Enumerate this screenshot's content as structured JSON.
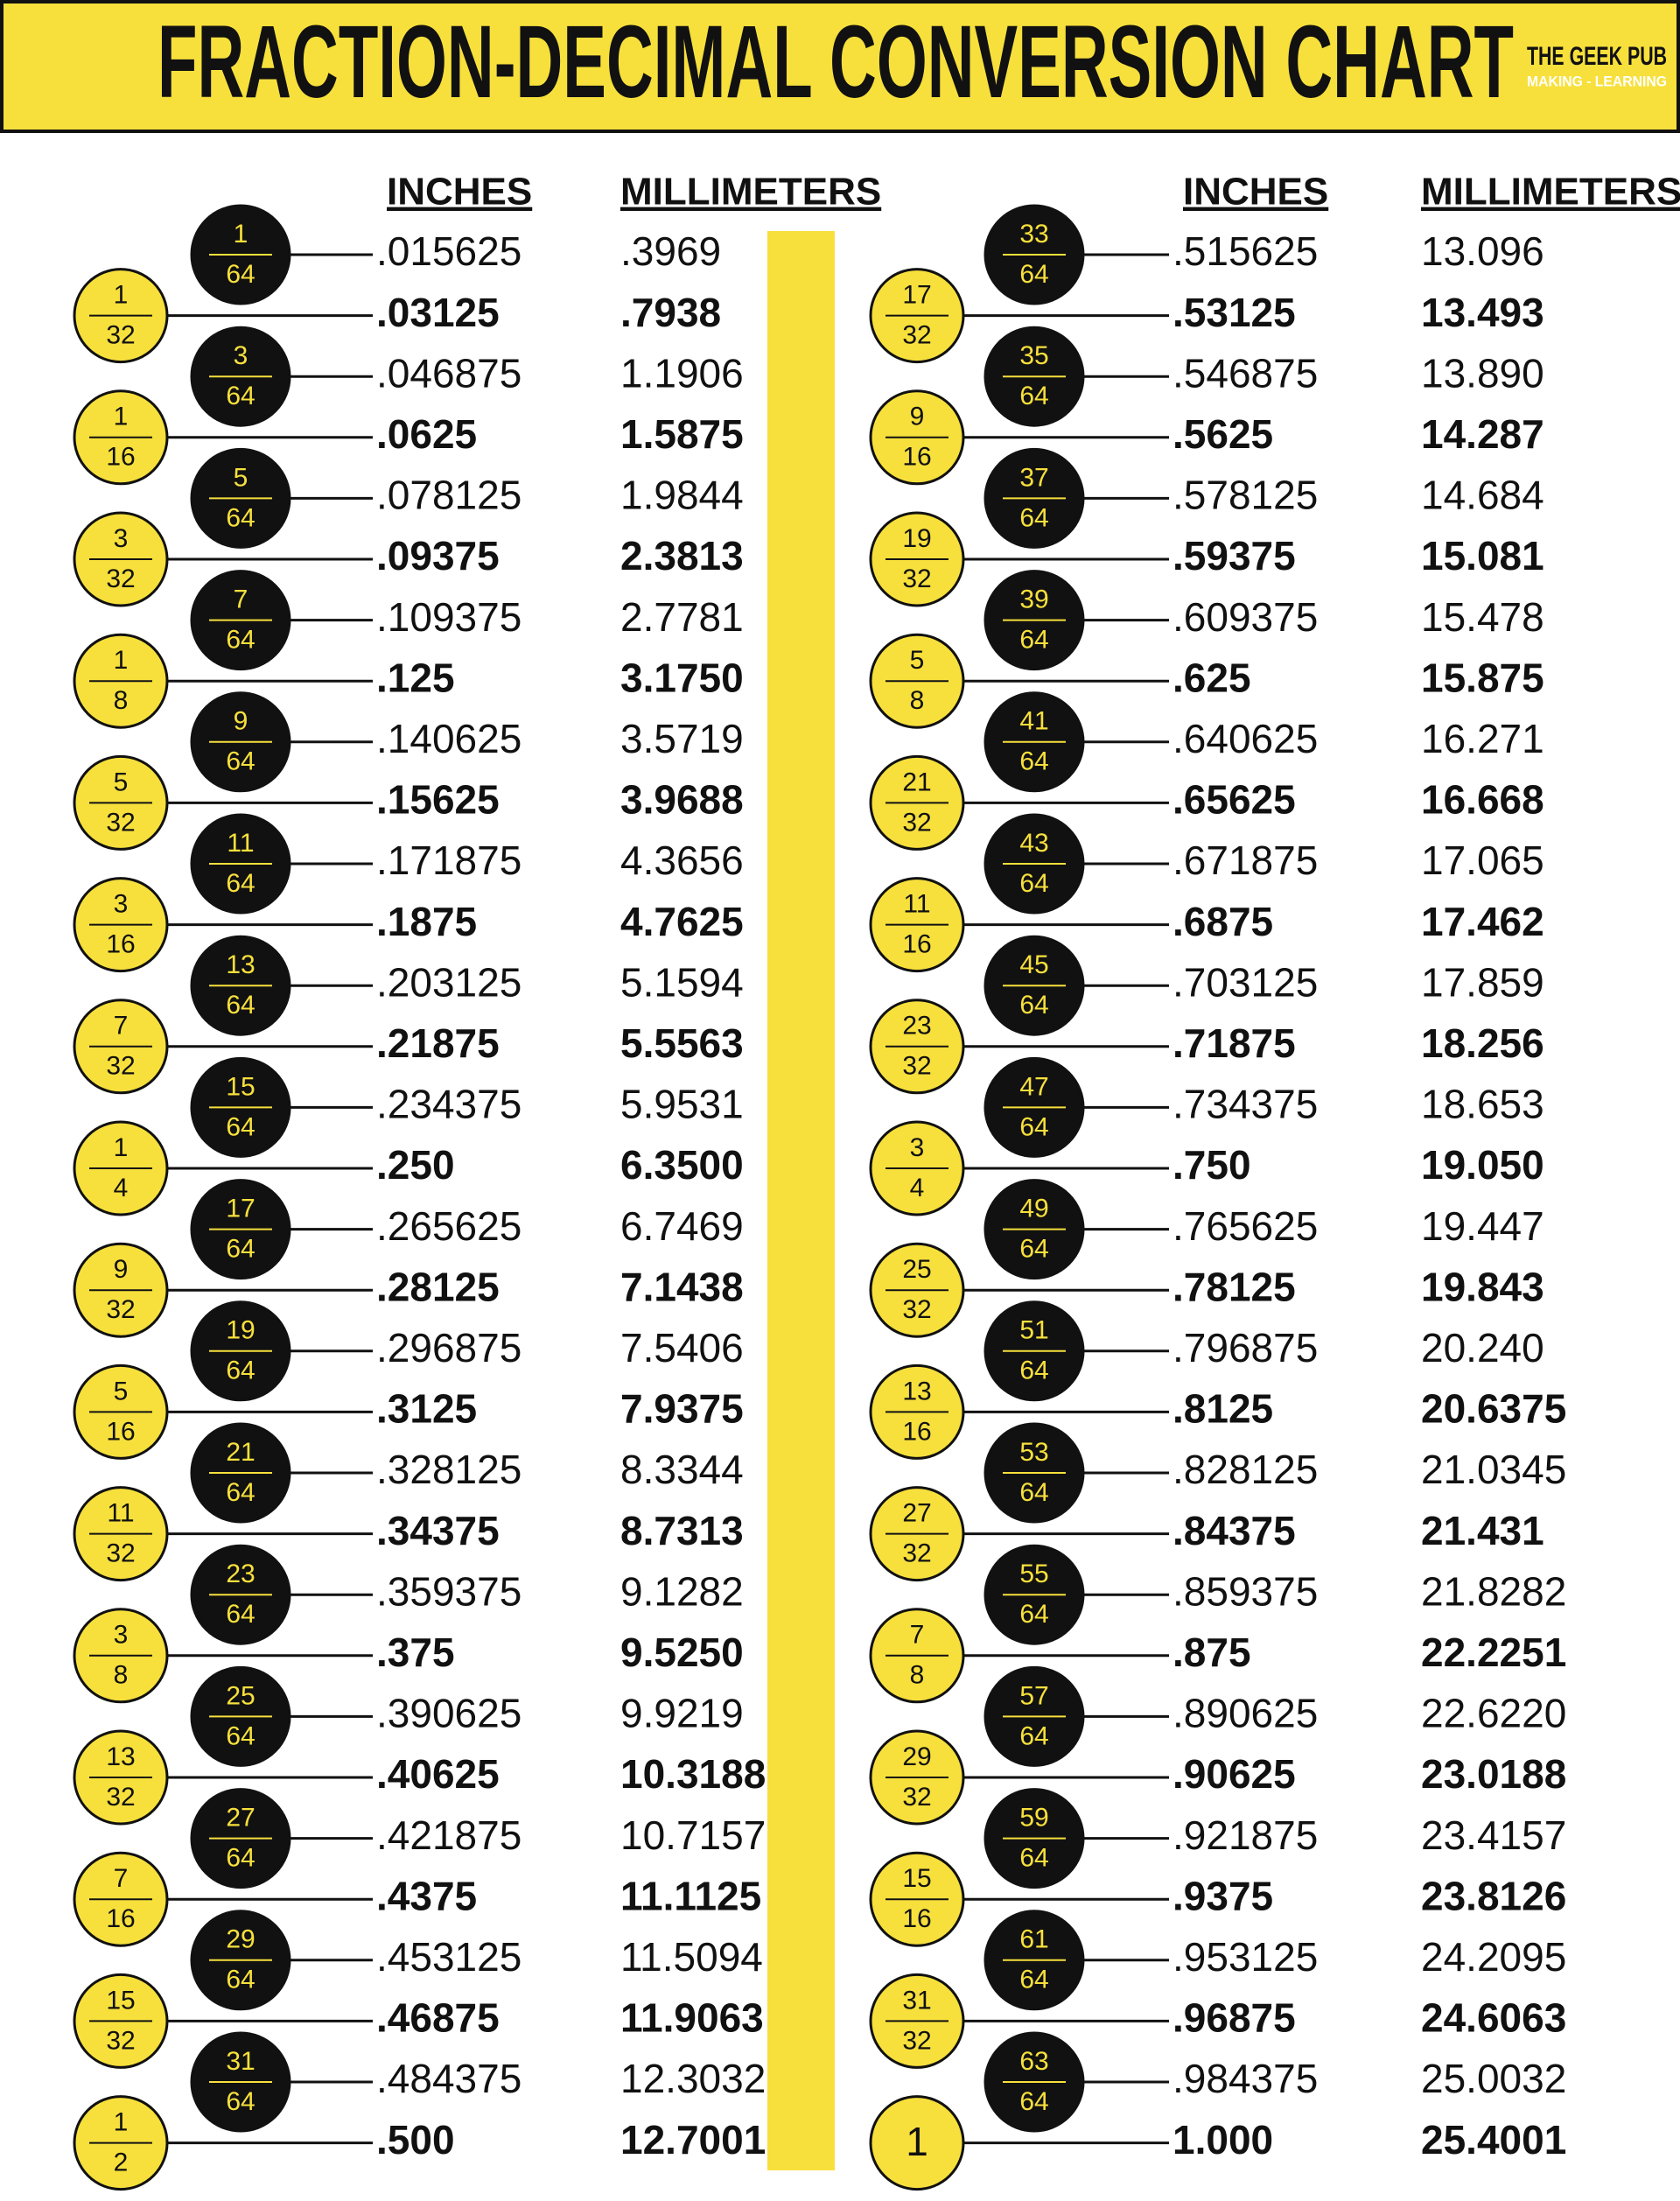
{
  "header": {
    "title": "FRACTION-DECIMAL CONVERSION CHART",
    "brand": "THE GEEK PUB",
    "tagline": "MAKING - LEARNING"
  },
  "columns": [
    {
      "inches_header": "INCHES",
      "mm_header": "MILLIMETERS",
      "rows": [
        {
          "num": "1",
          "den": "64",
          "inches": ".015625",
          "mm": ".3969"
        },
        {
          "num": "1",
          "den": "32",
          "inches": ".03125",
          "mm": ".7938"
        },
        {
          "num": "3",
          "den": "64",
          "inches": ".046875",
          "mm": "1.1906"
        },
        {
          "num": "1",
          "den": "16",
          "inches": ".0625",
          "mm": "1.5875"
        },
        {
          "num": "5",
          "den": "64",
          "inches": ".078125",
          "mm": "1.9844"
        },
        {
          "num": "3",
          "den": "32",
          "inches": ".09375",
          "mm": "2.3813"
        },
        {
          "num": "7",
          "den": "64",
          "inches": ".109375",
          "mm": "2.7781"
        },
        {
          "num": "1",
          "den": "8",
          "inches": ".125",
          "mm": "3.1750"
        },
        {
          "num": "9",
          "den": "64",
          "inches": ".140625",
          "mm": "3.5719"
        },
        {
          "num": "5",
          "den": "32",
          "inches": ".15625",
          "mm": "3.9688"
        },
        {
          "num": "11",
          "den": "64",
          "inches": ".171875",
          "mm": "4.3656"
        },
        {
          "num": "3",
          "den": "16",
          "inches": ".1875",
          "mm": "4.7625"
        },
        {
          "num": "13",
          "den": "64",
          "inches": ".203125",
          "mm": "5.1594"
        },
        {
          "num": "7",
          "den": "32",
          "inches": ".21875",
          "mm": "5.5563"
        },
        {
          "num": "15",
          "den": "64",
          "inches": ".234375",
          "mm": "5.9531"
        },
        {
          "num": "1",
          "den": "4",
          "inches": ".250",
          "mm": "6.3500"
        },
        {
          "num": "17",
          "den": "64",
          "inches": ".265625",
          "mm": "6.7469"
        },
        {
          "num": "9",
          "den": "32",
          "inches": ".28125",
          "mm": "7.1438"
        },
        {
          "num": "19",
          "den": "64",
          "inches": ".296875",
          "mm": "7.5406"
        },
        {
          "num": "5",
          "den": "16",
          "inches": ".3125",
          "mm": "7.9375"
        },
        {
          "num": "21",
          "den": "64",
          "inches": ".328125",
          "mm": "8.3344"
        },
        {
          "num": "11",
          "den": "32",
          "inches": ".34375",
          "mm": "8.7313"
        },
        {
          "num": "23",
          "den": "64",
          "inches": ".359375",
          "mm": "9.1282"
        },
        {
          "num": "3",
          "den": "8",
          "inches": ".375",
          "mm": "9.5250"
        },
        {
          "num": "25",
          "den": "64",
          "inches": ".390625",
          "mm": "9.9219"
        },
        {
          "num": "13",
          "den": "32",
          "inches": ".40625",
          "mm": "10.3188"
        },
        {
          "num": "27",
          "den": "64",
          "inches": ".421875",
          "mm": "10.7157"
        },
        {
          "num": "7",
          "den": "16",
          "inches": ".4375",
          "mm": "11.1125"
        },
        {
          "num": "29",
          "den": "64",
          "inches": ".453125",
          "mm": "11.5094"
        },
        {
          "num": "15",
          "den": "32",
          "inches": ".46875",
          "mm": "11.9063"
        },
        {
          "num": "31",
          "den": "64",
          "inches": ".484375",
          "mm": "12.3032"
        },
        {
          "num": "1",
          "den": "2",
          "inches": ".500",
          "mm": "12.7001"
        }
      ]
    },
    {
      "inches_header": "INCHES",
      "mm_header": "MILLIMETERS",
      "rows": [
        {
          "num": "33",
          "den": "64",
          "inches": ".515625",
          "mm": "13.096"
        },
        {
          "num": "17",
          "den": "32",
          "inches": ".53125",
          "mm": "13.493"
        },
        {
          "num": "35",
          "den": "64",
          "inches": ".546875",
          "mm": "13.890"
        },
        {
          "num": "9",
          "den": "16",
          "inches": ".5625",
          "mm": "14.287"
        },
        {
          "num": "37",
          "den": "64",
          "inches": ".578125",
          "mm": "14.684"
        },
        {
          "num": "19",
          "den": "32",
          "inches": ".59375",
          "mm": "15.081"
        },
        {
          "num": "39",
          "den": "64",
          "inches": ".609375",
          "mm": "15.478"
        },
        {
          "num": "5",
          "den": "8",
          "inches": ".625",
          "mm": "15.875"
        },
        {
          "num": "41",
          "den": "64",
          "inches": ".640625",
          "mm": "16.271"
        },
        {
          "num": "21",
          "den": "32",
          "inches": ".65625",
          "mm": "16.668"
        },
        {
          "num": "43",
          "den": "64",
          "inches": ".671875",
          "mm": "17.065"
        },
        {
          "num": "11",
          "den": "16",
          "inches": ".6875",
          "mm": "17.462"
        },
        {
          "num": "45",
          "den": "64",
          "inches": ".703125",
          "mm": "17.859"
        },
        {
          "num": "23",
          "den": "32",
          "inches": ".71875",
          "mm": "18.256"
        },
        {
          "num": "47",
          "den": "64",
          "inches": ".734375",
          "mm": "18.653"
        },
        {
          "num": "3",
          "den": "4",
          "inches": ".750",
          "mm": "19.050"
        },
        {
          "num": "49",
          "den": "64",
          "inches": ".765625",
          "mm": "19.447"
        },
        {
          "num": "25",
          "den": "32",
          "inches": ".78125",
          "mm": "19.843"
        },
        {
          "num": "51",
          "den": "64",
          "inches": ".796875",
          "mm": "20.240"
        },
        {
          "num": "13",
          "den": "16",
          "inches": ".8125",
          "mm": "20.6375"
        },
        {
          "num": "53",
          "den": "64",
          "inches": ".828125",
          "mm": "21.0345"
        },
        {
          "num": "27",
          "den": "32",
          "inches": ".84375",
          "mm": "21.431"
        },
        {
          "num": "55",
          "den": "64",
          "inches": ".859375",
          "mm": "21.8282"
        },
        {
          "num": "7",
          "den": "8",
          "inches": ".875",
          "mm": "22.2251"
        },
        {
          "num": "57",
          "den": "64",
          "inches": ".890625",
          "mm": "22.6220"
        },
        {
          "num": "29",
          "den": "32",
          "inches": ".90625",
          "mm": "23.0188"
        },
        {
          "num": "59",
          "den": "64",
          "inches": ".921875",
          "mm": "23.4157"
        },
        {
          "num": "15",
          "den": "16",
          "inches": ".9375",
          "mm": "23.8126"
        },
        {
          "num": "61",
          "den": "64",
          "inches": ".953125",
          "mm": "24.2095"
        },
        {
          "num": "31",
          "den": "32",
          "inches": ".96875",
          "mm": "24.6063"
        },
        {
          "num": "63",
          "den": "64",
          "inches": ".984375",
          "mm": "25.0032"
        },
        {
          "num": "1",
          "inches": "1.000",
          "mm": "25.4001"
        }
      ]
    }
  ]
}
